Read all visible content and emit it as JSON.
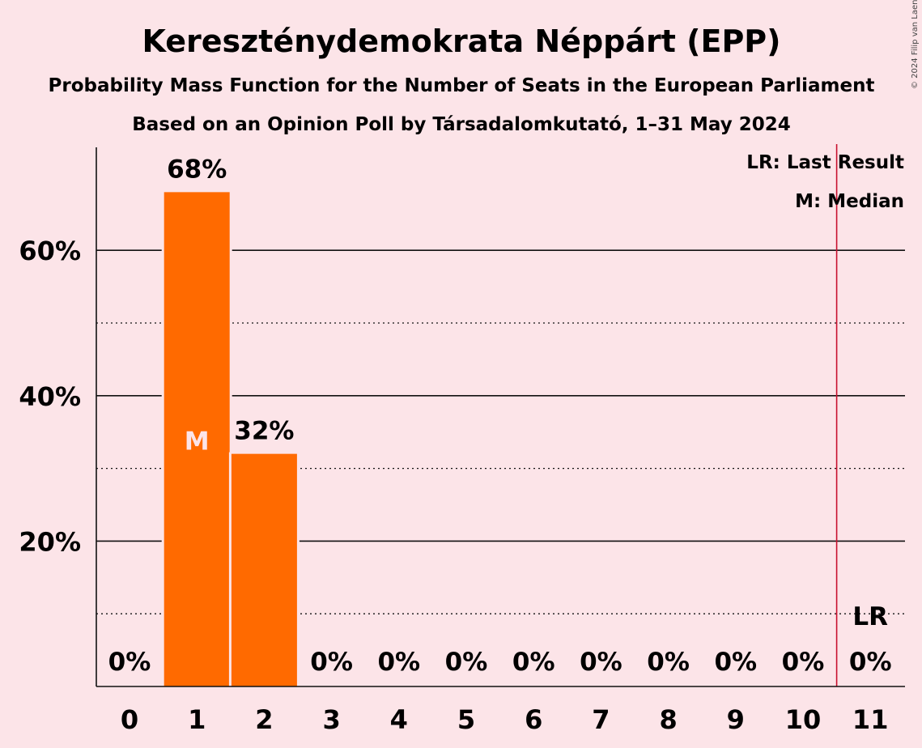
{
  "title": "Kereszténydemokrata Néppárt (EPP)",
  "subtitle1": "Probability Mass Function for the Number of Seats in the European Parliament",
  "subtitle2": "Based on an Opinion Poll by Társadalomkutató, 1–31 May 2024",
  "copyright": "© 2024 Filip van Laenen",
  "legend": {
    "lr": "LR: Last Result",
    "m": "M: Median"
  },
  "colors": {
    "background": "#fce4e8",
    "bar": "#ff6a00",
    "last_result_line": "#c8102e",
    "median_text": "#fce4e8"
  },
  "chart_data": {
    "type": "bar",
    "categories": [
      "0",
      "1",
      "2",
      "3",
      "4",
      "5",
      "6",
      "7",
      "8",
      "9",
      "10",
      "11"
    ],
    "values": [
      0,
      68,
      32,
      0,
      0,
      0,
      0,
      0,
      0,
      0,
      0,
      0
    ],
    "value_labels": [
      "0%",
      "68%",
      "32%",
      "0%",
      "0%",
      "0%",
      "0%",
      "0%",
      "0%",
      "0%",
      "0%",
      "0%"
    ],
    "yticks": [
      20,
      40,
      60
    ],
    "ytick_labels": [
      "20%",
      "40%",
      "60%"
    ],
    "minor_gridlines": [
      10,
      30,
      50
    ],
    "ylim": [
      0,
      74
    ],
    "median_seat": 1,
    "median_label": "M",
    "last_result_seat": 11,
    "last_result_label": "LR",
    "legend_position": "top-right"
  }
}
